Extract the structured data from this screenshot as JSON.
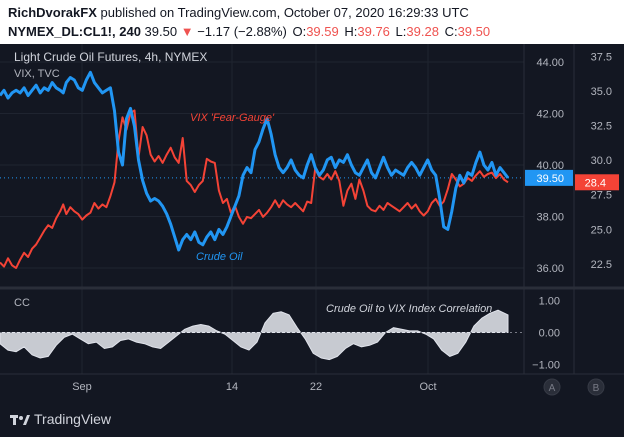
{
  "header": {
    "author": "RichDvorakFX",
    "published_text": "published on TradingView.com, October 07, 2020 16:29:33 UTC",
    "symbol": "NYMEX_DL:CL1!, 240",
    "last": "39.50",
    "change_arrow": "▼",
    "change": "−1.17 (−2.88%)",
    "open_label": "O:",
    "open": "39.59",
    "high_label": "H:",
    "high": "39.76",
    "low_label": "L:",
    "low": "39.28",
    "close_label": "C:",
    "close": "39.50"
  },
  "legend": {
    "main_title": "Light Crude Oil Futures, 4h, NYMEX",
    "overlay_title": "VIX, TVC",
    "oscillator_title": "CC"
  },
  "annotations": {
    "vix": "VIX 'Fear-Gauge'",
    "crude": "Crude Oil",
    "correlation": "Crude Oil to VIX Index Correlation"
  },
  "scale_buttons": [
    "A",
    "B"
  ],
  "footer": {
    "logo_icon": "tradingview-logo-icon",
    "brand": "TradingView"
  },
  "colors": {
    "background": "#131722",
    "crude": "#2196f3",
    "vix": "#f44336",
    "correlation_fill": "#c7cad1",
    "text": "#b2b5be",
    "last_label_bg": "#2196f3",
    "vix_label_bg": "#f44336"
  },
  "chart_data": [
    {
      "type": "line",
      "name": "main-pane",
      "title": "Light Crude Oil Futures, 4h, NYMEX",
      "x_tick_labels": [
        "Sep",
        "14",
        "22",
        "Oct"
      ],
      "y_left_ticks": [
        36.0,
        38.0,
        40.0,
        42.0,
        44.0
      ],
      "y_left_range": [
        35.3,
        44.7
      ],
      "y_right_ticks": [
        22.5,
        25.0,
        27.5,
        30.0,
        32.5,
        35.0,
        37.5
      ],
      "y_right_range": [
        20.9,
        38.4
      ],
      "last_value_labels": [
        {
          "series": "crude",
          "value": "39.50",
          "numeric": 39.5
        },
        {
          "series": "vix",
          "value": "28.4",
          "numeric": 28.4
        }
      ],
      "series": [
        {
          "name": "Crude Oil",
          "axis": "left",
          "x": [
            0,
            4,
            8,
            12,
            16,
            20,
            24,
            28,
            32,
            36,
            40,
            44,
            48,
            52,
            56,
            60,
            63,
            66,
            70,
            74,
            78,
            82,
            86,
            90,
            94,
            98,
            102,
            106,
            110,
            114,
            118,
            122,
            126,
            130,
            134,
            138,
            142,
            146,
            150,
            154,
            158,
            162,
            166,
            170,
            174,
            178,
            182,
            186,
            190,
            194,
            198,
            202,
            206,
            210,
            214,
            218,
            222,
            226,
            230,
            234,
            238,
            242,
            246,
            250,
            254,
            258,
            262,
            266,
            270,
            274,
            278,
            282,
            286,
            290,
            294,
            298,
            302,
            306,
            310,
            314,
            318,
            322,
            326,
            330,
            334,
            338,
            342,
            346,
            350,
            354,
            358,
            362,
            366,
            370,
            374,
            378,
            382,
            386,
            390,
            394,
            398,
            402,
            406,
            410,
            414,
            418,
            422,
            426,
            430,
            434,
            438,
            442,
            446,
            450,
            454,
            458,
            462,
            466,
            470,
            474,
            478,
            482,
            486,
            490,
            494,
            498,
            502,
            506
          ],
          "values": [
            42.7,
            42.9,
            42.6,
            42.8,
            42.9,
            42.8,
            43.0,
            42.7,
            42.9,
            43.1,
            42.8,
            43.0,
            42.9,
            43.2,
            43.0,
            42.9,
            42.8,
            43.2,
            43.4,
            43.3,
            43.0,
            42.9,
            43.3,
            43.6,
            43.2,
            43.0,
            42.8,
            42.9,
            43.0,
            42.1,
            40.5,
            40.0,
            41.8,
            42.2,
            41.5,
            40.2,
            39.4,
            38.9,
            38.6,
            38.7,
            38.6,
            38.4,
            38.1,
            37.7,
            37.2,
            36.7,
            37.1,
            37.3,
            37.1,
            37.4,
            37.0,
            36.9,
            37.2,
            37.4,
            37.1,
            37.5,
            37.3,
            37.6,
            38.0,
            38.4,
            38.8,
            39.6,
            39.9,
            39.7,
            40.6,
            40.9,
            41.4,
            41.8,
            41.2,
            40.4,
            39.9,
            39.7,
            39.9,
            40.2,
            39.8,
            39.6,
            39.5,
            40.0,
            40.4,
            39.9,
            39.6,
            39.8,
            40.2,
            40.3,
            39.9,
            40.2,
            40.1,
            40.4,
            40.0,
            39.7,
            39.6,
            39.9,
            40.2,
            39.7,
            39.5,
            39.9,
            40.3,
            39.9,
            39.6,
            39.8,
            39.7,
            39.6,
            39.9,
            40.1,
            39.9,
            39.6,
            39.9,
            40.2,
            39.8,
            39.6,
            38.7,
            37.6,
            37.5,
            38.2,
            39.1,
            39.6,
            39.3,
            39.7,
            39.6,
            40.1,
            40.5,
            40.0,
            39.8,
            40.1,
            39.6,
            39.9,
            39.7,
            39.5
          ]
        },
        {
          "name": "VIX",
          "axis": "right",
          "x": [
            0,
            4,
            8,
            12,
            16,
            20,
            24,
            28,
            32,
            36,
            40,
            44,
            48,
            52,
            56,
            60,
            63,
            66,
            70,
            74,
            78,
            82,
            86,
            90,
            94,
            98,
            102,
            106,
            110,
            114,
            118,
            122,
            126,
            130,
            134,
            138,
            142,
            146,
            150,
            154,
            158,
            162,
            166,
            170,
            174,
            178,
            182,
            186,
            190,
            194,
            198,
            202,
            206,
            210,
            214,
            218,
            222,
            226,
            230,
            234,
            238,
            242,
            246,
            250,
            254,
            258,
            262,
            266,
            270,
            274,
            278,
            282,
            286,
            290,
            294,
            298,
            302,
            306,
            310,
            314,
            318,
            322,
            326,
            330,
            334,
            338,
            342,
            346,
            350,
            354,
            358,
            362,
            366,
            370,
            374,
            378,
            382,
            386,
            390,
            394,
            398,
            402,
            406,
            410,
            414,
            418,
            422,
            426,
            430,
            434,
            438,
            442,
            446,
            450,
            454,
            458,
            462,
            466,
            470,
            474,
            478,
            482,
            486,
            490,
            494,
            498,
            502,
            506
          ],
          "values": [
            22.6,
            22.3,
            22.9,
            22.4,
            22.2,
            22.8,
            23.3,
            23.0,
            23.6,
            23.9,
            24.4,
            24.9,
            25.3,
            25.1,
            25.8,
            26.3,
            26.8,
            26.1,
            26.6,
            26.3,
            26.1,
            25.7,
            26.0,
            26.2,
            26.9,
            26.5,
            26.8,
            26.6,
            27.4,
            28.4,
            31.4,
            33.1,
            32.2,
            33.4,
            33.6,
            30.2,
            32.4,
            31.8,
            30.4,
            29.9,
            30.3,
            29.8,
            30.4,
            30.9,
            30.2,
            29.8,
            31.6,
            28.5,
            28.2,
            27.7,
            28.2,
            28.5,
            30.1,
            29.9,
            29.8,
            27.8,
            26.9,
            27.2,
            26.2,
            26.7,
            25.9,
            25.4,
            25.9,
            25.8,
            26.1,
            26.4,
            25.9,
            26.2,
            26.6,
            27.1,
            26.6,
            27.1,
            26.8,
            26.6,
            26.9,
            26.6,
            26.3,
            27.0,
            26.9,
            29.4,
            28.8,
            28.6,
            29.0,
            28.6,
            29.2,
            28.5,
            26.7,
            27.8,
            28.3,
            27.2,
            28.6,
            27.8,
            26.7,
            26.4,
            26.3,
            26.7,
            26.4,
            26.9,
            26.7,
            26.5,
            26.3,
            26.6,
            26.9,
            26.5,
            26.8,
            26.3,
            26.0,
            26.3,
            26.9,
            27.2,
            26.7,
            27.0,
            27.9,
            29.0,
            28.6,
            28.1,
            28.3,
            28.7,
            28.5,
            28.9,
            29.2,
            28.8,
            29.0,
            29.1,
            28.7,
            29.0,
            28.6,
            28.4
          ]
        }
      ]
    },
    {
      "type": "area",
      "name": "correlation-pane",
      "title": "CC",
      "y_ticks": [
        1.0,
        0.0,
        -1.0
      ],
      "y_tick_labels": [
        "1.00",
        "0.00",
        "−1.00"
      ],
      "y_range": [
        -1.3,
        1.3
      ],
      "series": [
        {
          "name": "CC",
          "x": [
            0,
            8,
            16,
            24,
            32,
            40,
            48,
            56,
            64,
            72,
            80,
            88,
            96,
            104,
            112,
            120,
            128,
            136,
            144,
            152,
            160,
            168,
            176,
            184,
            192,
            200,
            208,
            216,
            224,
            232,
            240,
            248,
            256,
            264,
            272,
            280,
            288,
            296,
            304,
            312,
            320,
            328,
            336,
            344,
            352,
            360,
            368,
            376,
            384,
            392,
            400,
            408,
            416,
            424,
            432,
            440,
            448,
            456,
            464,
            472,
            480,
            488,
            496,
            506
          ],
          "values": [
            -0.35,
            -0.55,
            -0.6,
            -0.45,
            -0.7,
            -0.8,
            -0.75,
            -0.4,
            -0.15,
            -0.05,
            -0.2,
            -0.35,
            -0.3,
            -0.5,
            -0.45,
            -0.25,
            -0.2,
            -0.3,
            -0.35,
            -0.45,
            -0.5,
            -0.3,
            -0.1,
            0.1,
            0.2,
            0.25,
            0.2,
            0.05,
            -0.05,
            -0.25,
            -0.45,
            -0.55,
            -0.3,
            0.3,
            0.6,
            0.65,
            0.55,
            0.15,
            -0.2,
            -0.65,
            -0.8,
            -0.85,
            -0.75,
            -0.5,
            -0.35,
            -0.45,
            -0.4,
            -0.3,
            0.0,
            0.15,
            0.1,
            0.05,
            0.05,
            -0.05,
            -0.2,
            -0.55,
            -0.75,
            -0.65,
            -0.3,
            0.2,
            0.45,
            0.6,
            0.7,
            0.55
          ]
        }
      ]
    }
  ]
}
